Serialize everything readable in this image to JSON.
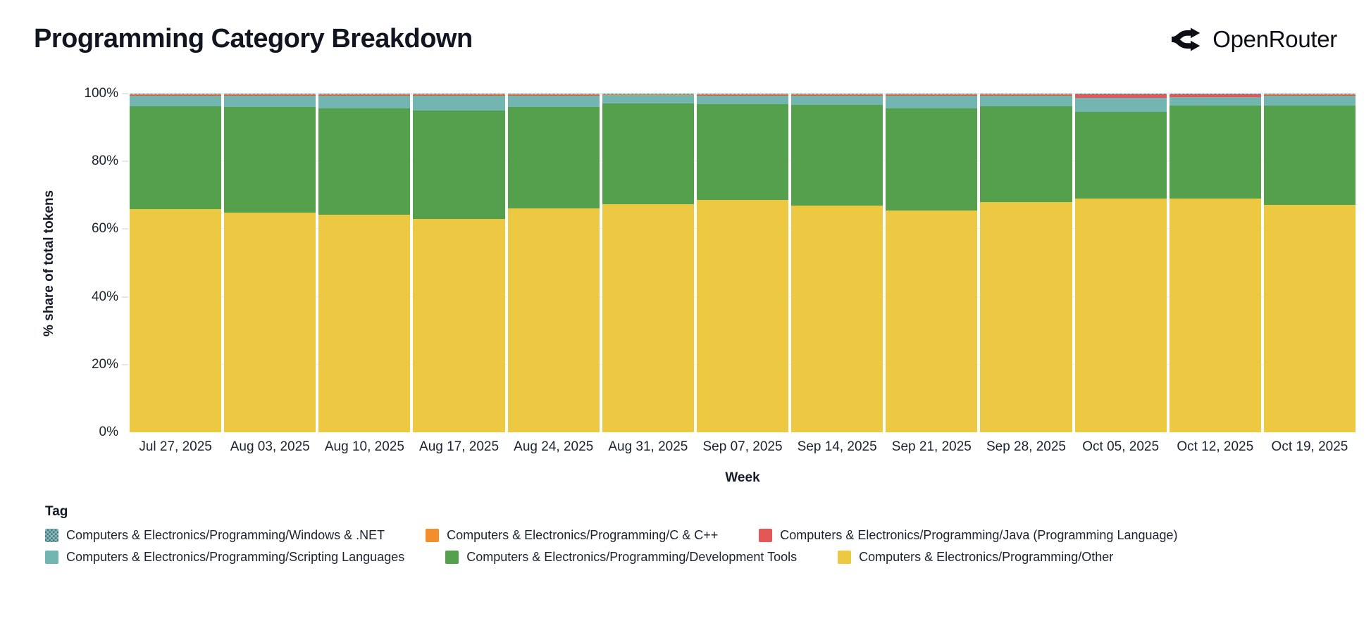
{
  "header": {
    "title": "Programming Category Breakdown",
    "logo_text": "OpenRouter"
  },
  "chart_data": {
    "type": "bar",
    "variant": "100pct-stacked-column",
    "title": "Programming Category Breakdown",
    "xlabel": "Week",
    "ylabel": "% share of total tokens",
    "ylim": [
      0,
      100
    ],
    "grid": "horizontal-light",
    "legend_position": "bottom-left",
    "legend_title": "Tag",
    "yticks": [
      "0%",
      "20%",
      "40%",
      "60%",
      "80%",
      "100%"
    ],
    "categories": [
      "Jul 27, 2025",
      "Aug 03, 2025",
      "Aug 10, 2025",
      "Aug 17, 2025",
      "Aug 24, 2025",
      "Aug 31, 2025",
      "Sep 07, 2025",
      "Sep 14, 2025",
      "Sep 21, 2025",
      "Sep 28, 2025",
      "Oct 05, 2025",
      "Oct 12, 2025",
      "Oct 19, 2025"
    ],
    "stack_order": "bottom_to_top",
    "series": [
      {
        "name": "Computers & Electronics/Programming/Other",
        "color": "#edc843",
        "values": [
          66.0,
          64.8,
          64.2,
          62.9,
          66.2,
          67.4,
          68.6,
          66.9,
          65.4,
          67.9,
          69.0,
          69.0,
          67.2
        ]
      },
      {
        "name": "Computers & Electronics/Programming/Development Tools",
        "color": "#55a04c",
        "values": [
          30.2,
          31.2,
          31.4,
          32.2,
          29.9,
          29.7,
          28.3,
          29.8,
          30.3,
          28.4,
          25.6,
          27.4,
          29.2
        ]
      },
      {
        "name": "Computers & Electronics/Programming/Scripting Languages",
        "color": "#73b5b1",
        "values": [
          3.2,
          3.4,
          3.8,
          4.3,
          3.3,
          2.4,
          2.5,
          2.7,
          3.7,
          3.1,
          4.2,
          2.5,
          3.0
        ]
      },
      {
        "name": "Computers & Electronics/Programming/Java (Programming Language)",
        "color": "#e45756",
        "values": [
          0.1,
          0.1,
          0.1,
          0.1,
          0.1,
          0.1,
          0.1,
          0.1,
          0.1,
          0.1,
          1.0,
          0.9,
          0.1
        ]
      },
      {
        "name": "Computers & Electronics/Programming/C & C++",
        "color": "#f28e2c",
        "values": [
          0.4,
          0.4,
          0.4,
          0.4,
          0.4,
          0.3,
          0.4,
          0.4,
          0.4,
          0.4,
          0.1,
          0.1,
          0.4
        ]
      },
      {
        "name": "Computers & Electronics/Programming/Windows & .NET",
        "color": "#51707d",
        "pattern": "teal-crosshatch",
        "values": [
          0.1,
          0.1,
          0.1,
          0.1,
          0.1,
          0.1,
          0.1,
          0.1,
          0.1,
          0.1,
          0.1,
          0.1,
          0.1
        ]
      }
    ]
  },
  "legend": {
    "title": "Tag",
    "items": [
      {
        "label": "Computers & Electronics/Programming/Windows & .NET",
        "color": "#51707d",
        "pattern": "teal-crosshatch"
      },
      {
        "label": "Computers & Electronics/Programming/C & C++",
        "color": "#f28e2c"
      },
      {
        "label": "Computers & Electronics/Programming/Java (Programming Language)",
        "color": "#e45756"
      },
      {
        "label": "Computers & Electronics/Programming/Scripting Languages",
        "color": "#73b5b1"
      },
      {
        "label": "Computers & Electronics/Programming/Development Tools",
        "color": "#55a04c"
      },
      {
        "label": "Computers & Electronics/Programming/Other",
        "color": "#edc843"
      }
    ]
  }
}
